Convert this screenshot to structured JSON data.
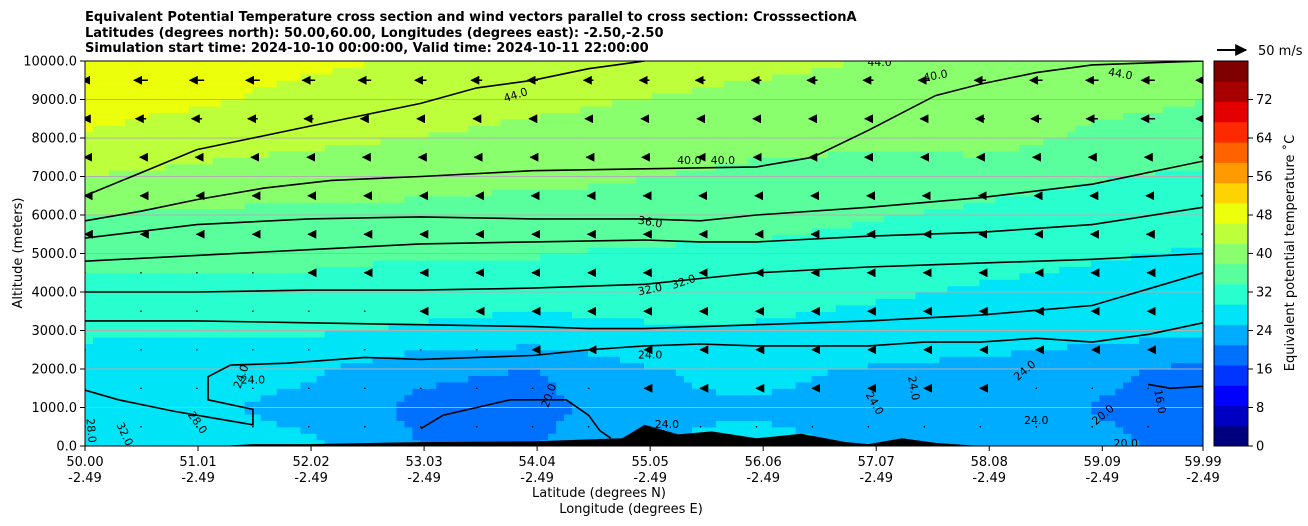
{
  "chart_data": {
    "type": "heatmap",
    "title_lines": [
      "Equivalent Potential Temperature cross section and wind vectors parallel to cross section: CrosssectionA",
      "Latitudes (degrees north): 50.00,60.00, Longitudes (degrees east): -2.50,-2.50",
      "Simulation start time: 2024-10-10 00:00:00, Valid time: 2024-10-11 22:00:00"
    ],
    "xlabel_lines": [
      "Latitude (degrees N)",
      "Longitude (degrees E)"
    ],
    "ylabel": "Altitude (meters)",
    "colorbar_label": "Equivalent potential temperature $^\\circ$C",
    "colorbar_label_display": "Equivalent potential temperature ˚C",
    "quiver_key_label": "50 m/s",
    "xlim": [
      50.0,
      59.99
    ],
    "ylim": [
      0,
      10000
    ],
    "x_ticks": [
      {
        "lat": "50.00",
        "lon": "-2.49",
        "value": 50.0
      },
      {
        "lat": "51.01",
        "lon": "-2.49",
        "value": 51.01
      },
      {
        "lat": "52.02",
        "lon": "-2.49",
        "value": 52.02
      },
      {
        "lat": "53.03",
        "lon": "-2.49",
        "value": 53.03
      },
      {
        "lat": "54.04",
        "lon": "-2.49",
        "value": 54.04
      },
      {
        "lat": "55.05",
        "lon": "-2.49",
        "value": 55.05
      },
      {
        "lat": "56.06",
        "lon": "-2.49",
        "value": 56.06
      },
      {
        "lat": "57.07",
        "lon": "-2.49",
        "value": 57.07
      },
      {
        "lat": "58.08",
        "lon": "-2.49",
        "value": 58.08
      },
      {
        "lat": "59.09",
        "lon": "-2.49",
        "value": 59.09
      },
      {
        "lat": "59.99",
        "lon": "-2.49",
        "value": 59.99
      }
    ],
    "y_ticks": [
      {
        "label": "0.0",
        "value": 0
      },
      {
        "label": "1000.0",
        "value": 1000
      },
      {
        "label": "2000.0",
        "value": 2000
      },
      {
        "label": "3000.0",
        "value": 3000
      },
      {
        "label": "4000.0",
        "value": 4000
      },
      {
        "label": "5000.0",
        "value": 5000
      },
      {
        "label": "6000.0",
        "value": 6000
      },
      {
        "label": "7000.0",
        "value": 7000
      },
      {
        "label": "8000.0",
        "value": 8000
      },
      {
        "label": "9000.0",
        "value": 9000
      },
      {
        "label": "10000.0",
        "value": 10000
      }
    ],
    "colorbar_ticks": [
      "0",
      "8",
      "16",
      "24",
      "32",
      "40",
      "48",
      "56",
      "64",
      "72"
    ],
    "colorbar_range": [
      0,
      80
    ],
    "colorbar_colors": [
      "#00007f",
      "#0000c4",
      "#0000ff",
      "#0034ff",
      "#0070ff",
      "#00acff",
      "#00e4f8",
      "#29ffce",
      "#5aff9d",
      "#8aff6d",
      "#bdff3a",
      "#ecff0b",
      "#ffd300",
      "#ff9a00",
      "#ff6300",
      "#ff2900",
      "#e40000",
      "#a80000",
      "#7f0000"
    ],
    "heatmap_grid": {
      "lat": [
        50.0,
        51.0,
        52.0,
        53.0,
        54.0,
        55.0,
        56.0,
        57.0,
        58.0,
        59.0,
        59.99
      ],
      "alt": [
        0,
        1000,
        2000,
        3000,
        4000,
        5000,
        6000,
        7000,
        8000,
        9000,
        10000
      ],
      "theta_e_c": [
        [
          28,
          27,
          26,
          21,
          21,
          25,
          26,
          25,
          25,
          22,
          20
        ],
        [
          28,
          26,
          24,
          20,
          19,
          25,
          25,
          24,
          24,
          21,
          19
        ],
        [
          28,
          27,
          26,
          22,
          21,
          25,
          26,
          25,
          24,
          22,
          20
        ],
        [
          30,
          30,
          30,
          29,
          28,
          29,
          29,
          28,
          28,
          27,
          26
        ],
        [
          32,
          32,
          32,
          31,
          31,
          31,
          31,
          30,
          29,
          28,
          27
        ],
        [
          35,
          35,
          35,
          34,
          34,
          33,
          33,
          32,
          31,
          30,
          29
        ],
        [
          38,
          37,
          37,
          37,
          36,
          36,
          35,
          34,
          33,
          32,
          31
        ],
        [
          42,
          41,
          40,
          39,
          39,
          38,
          37,
          36,
          35,
          34,
          33
        ],
        [
          46,
          44,
          43,
          42,
          41,
          40,
          39,
          39,
          40,
          37,
          36
        ],
        [
          48,
          47,
          45,
          44,
          43,
          42,
          41,
          41,
          41,
          39,
          38
        ],
        [
          49,
          48,
          47,
          46,
          45,
          44,
          43,
          42,
          41,
          40,
          40
        ]
      ]
    },
    "contour_levels": [
      "16.0",
      "20.0",
      "24.0",
      "28.0",
      "32.0",
      "36.0",
      "40.0",
      "44.0"
    ],
    "contours": [
      {
        "label": "44.0",
        "points": [
          [
            50.0,
            6500
          ],
          [
            50.5,
            7100
          ],
          [
            51.0,
            7700
          ],
          [
            51.5,
            8000
          ],
          [
            52.0,
            8300
          ],
          [
            52.5,
            8600
          ],
          [
            53.0,
            8900
          ],
          [
            53.5,
            9300
          ],
          [
            54.0,
            9500
          ],
          [
            54.5,
            9800
          ],
          [
            55.0,
            10000
          ]
        ]
      },
      {
        "label": "40.0",
        "points": [
          [
            50.0,
            5850
          ],
          [
            50.5,
            6100
          ],
          [
            51.0,
            6400
          ],
          [
            51.6,
            6700
          ],
          [
            52.2,
            6900
          ],
          [
            53.0,
            7000
          ],
          [
            54.0,
            7150
          ],
          [
            55.0,
            7200
          ],
          [
            56.0,
            7250
          ],
          [
            56.5,
            7500
          ],
          [
            57.0,
            8200
          ],
          [
            57.6,
            9100
          ],
          [
            58.0,
            9400
          ],
          [
            58.5,
            9700
          ],
          [
            59.0,
            9900
          ],
          [
            59.99,
            10000
          ]
        ]
      },
      {
        "label": "36.0",
        "points": [
          [
            50.0,
            5400
          ],
          [
            51.0,
            5750
          ],
          [
            52.0,
            5900
          ],
          [
            53.0,
            5950
          ],
          [
            54.0,
            5900
          ],
          [
            55.0,
            5900
          ],
          [
            55.5,
            5850
          ],
          [
            56.0,
            6000
          ],
          [
            57.0,
            6200
          ],
          [
            58.0,
            6450
          ],
          [
            59.0,
            6800
          ],
          [
            59.99,
            7400
          ]
        ]
      },
      {
        "label": "32.0",
        "points": [
          [
            50.0,
            4800
          ],
          [
            51.0,
            4950
          ],
          [
            52.0,
            5100
          ],
          [
            53.0,
            5250
          ],
          [
            54.0,
            5300
          ],
          [
            55.0,
            5350
          ],
          [
            55.5,
            5300
          ],
          [
            56.0,
            5300
          ],
          [
            57.0,
            5450
          ],
          [
            58.0,
            5550
          ],
          [
            59.0,
            5750
          ],
          [
            59.99,
            6200
          ]
        ]
      },
      {
        "label": "32.0",
        "points": [
          [
            50.0,
            4000
          ],
          [
            51.0,
            4000
          ],
          [
            52.0,
            4050
          ],
          [
            53.0,
            4050
          ],
          [
            54.0,
            4100
          ],
          [
            55.0,
            4200
          ],
          [
            55.5,
            4350
          ],
          [
            56.0,
            4500
          ],
          [
            57.0,
            4650
          ],
          [
            58.0,
            4750
          ],
          [
            59.0,
            4850
          ],
          [
            59.99,
            5000
          ]
        ]
      },
      {
        "label": "28.0",
        "points": [
          [
            50.0,
            3250
          ],
          [
            51.0,
            3250
          ],
          [
            52.0,
            3200
          ],
          [
            53.0,
            3150
          ],
          [
            54.0,
            3100
          ],
          [
            54.5,
            3050
          ],
          [
            55.0,
            3050
          ],
          [
            56.0,
            3150
          ],
          [
            57.0,
            3250
          ],
          [
            58.0,
            3400
          ],
          [
            59.0,
            3650
          ],
          [
            59.99,
            4500
          ]
        ]
      },
      {
        "label": "24.0",
        "points": [
          [
            50.0,
            1450
          ],
          [
            50.3,
            1200
          ],
          [
            50.8,
            900
          ],
          [
            51.2,
            700
          ],
          [
            51.5,
            550
          ],
          [
            51.5,
            950
          ],
          [
            51.1,
            1200
          ],
          [
            51.1,
            1800
          ],
          [
            51.3,
            2100
          ],
          [
            51.8,
            2150
          ],
          [
            52.5,
            2300
          ],
          [
            53.0,
            2250
          ],
          [
            53.5,
            2300
          ],
          [
            54.0,
            2350
          ],
          [
            54.5,
            2500
          ],
          [
            55.0,
            2600
          ],
          [
            55.5,
            2650
          ],
          [
            56.0,
            2600
          ],
          [
            56.5,
            2600
          ],
          [
            57.0,
            2600
          ],
          [
            57.5,
            2700
          ],
          [
            58.0,
            2700
          ],
          [
            58.5,
            2800
          ],
          [
            59.0,
            2700
          ],
          [
            59.5,
            2900
          ],
          [
            59.99,
            3200
          ]
        ]
      },
      {
        "label": "20.0",
        "points": [
          [
            53.0,
            450
          ],
          [
            53.2,
            800
          ],
          [
            53.8,
            1200
          ],
          [
            54.3,
            1200
          ],
          [
            54.5,
            800
          ],
          [
            54.6,
            400
          ],
          [
            54.7,
            200
          ]
        ]
      },
      {
        "label": "16.0",
        "points": [
          [
            59.5,
            1600
          ],
          [
            59.7,
            1500
          ],
          [
            59.99,
            1550
          ]
        ]
      }
    ],
    "contour_labels": [
      {
        "text": "44.0",
        "lat": 53.85,
        "alt": 9100,
        "rot": -18
      },
      {
        "text": "44.0",
        "lat": 59.25,
        "alt": 9650,
        "rot": 10
      },
      {
        "text": "44.0",
        "lat": 57.1,
        "alt": 9950,
        "rot": 0
      },
      {
        "text": "40.0",
        "lat": 57.6,
        "alt": 9600,
        "rot": -10
      },
      {
        "text": "40.0",
        "lat": 55.4,
        "alt": 7400,
        "rot": 0
      },
      {
        "text": "40.0",
        "lat": 55.7,
        "alt": 7400,
        "rot": 0
      },
      {
        "text": "36.0",
        "lat": 55.05,
        "alt": 5800,
        "rot": 10
      },
      {
        "text": "32.0",
        "lat": 55.05,
        "alt": 4050,
        "rot": -12
      },
      {
        "text": "32.0",
        "lat": 55.35,
        "alt": 4250,
        "rot": -18
      },
      {
        "text": "24.0",
        "lat": 55.05,
        "alt": 2350,
        "rot": 0
      },
      {
        "text": "24.0",
        "lat": 51.5,
        "alt": 1700,
        "rot": 0
      },
      {
        "text": "24.0",
        "lat": 51.4,
        "alt": 1800,
        "rot": -70
      },
      {
        "text": "24.0",
        "lat": 55.2,
        "alt": 550,
        "rot": 0
      },
      {
        "text": "24.0",
        "lat": 57.05,
        "alt": 1100,
        "rot": 60
      },
      {
        "text": "24.0",
        "lat": 57.4,
        "alt": 1500,
        "rot": 80
      },
      {
        "text": "24.0",
        "lat": 58.4,
        "alt": 1950,
        "rot": -40
      },
      {
        "text": "24.0",
        "lat": 58.5,
        "alt": 650,
        "rot": 0
      },
      {
        "text": "20.0",
        "lat": 54.15,
        "alt": 1300,
        "rot": -70
      },
      {
        "text": "20.0",
        "lat": 59.1,
        "alt": 800,
        "rot": -40
      },
      {
        "text": "20.0",
        "lat": 59.3,
        "alt": 50,
        "rot": 0
      },
      {
        "text": "16.0",
        "lat": 59.6,
        "alt": 1150,
        "rot": 80
      },
      {
        "text": "28.0",
        "lat": 51.0,
        "alt": 600,
        "rot": 55
      },
      {
        "text": "28.0",
        "lat": 50.05,
        "alt": 400,
        "rot": 85
      },
      {
        "text": "32.0",
        "lat": 50.35,
        "alt": 300,
        "rot": 65
      }
    ],
    "terrain": [
      [
        50.0,
        0
      ],
      [
        51.2,
        0
      ],
      [
        51.5,
        50
      ],
      [
        52.0,
        50
      ],
      [
        53.0,
        100
      ],
      [
        54.0,
        120
      ],
      [
        54.8,
        200
      ],
      [
        55.0,
        550
      ],
      [
        55.3,
        300
      ],
      [
        55.6,
        380
      ],
      [
        56.0,
        200
      ],
      [
        56.4,
        320
      ],
      [
        56.8,
        100
      ],
      [
        57.0,
        50
      ],
      [
        57.3,
        200
      ],
      [
        57.6,
        80
      ],
      [
        58.0,
        0
      ],
      [
        59.99,
        0
      ]
    ],
    "wind_field": {
      "lat_positions": [
        50.0,
        50.5,
        51.0,
        51.5,
        52.0,
        52.5,
        53.0,
        53.5,
        54.0,
        54.5,
        55.0,
        55.5,
        56.0,
        56.5,
        57.0,
        57.5,
        58.0,
        58.5,
        59.0,
        59.5,
        59.99
      ],
      "alt_positions": [
        9500,
        8500,
        7500,
        6500,
        5500,
        4500,
        3500,
        2500,
        1500,
        500
      ],
      "u_ms": [
        [
          -10,
          -24,
          -25,
          -24,
          -22,
          -22,
          -20,
          -19,
          -18,
          -17,
          -17,
          -17,
          -17,
          -18,
          -18,
          -20,
          -20,
          -22,
          -22,
          -23,
          -24
        ],
        [
          -8,
          -18,
          -18,
          -17,
          -16,
          -14,
          -13,
          -12,
          -12,
          -12,
          -12,
          -12,
          -12,
          -12,
          -12,
          -14,
          -16,
          -18,
          -20,
          -24,
          -24
        ],
        [
          -3,
          -4,
          -5,
          -6,
          -6,
          -7,
          -7,
          -8,
          -8,
          -8,
          -9,
          -10,
          -10,
          -11,
          -12,
          -12,
          -12,
          -12,
          -12,
          -12,
          -12
        ],
        [
          -2,
          -2,
          -2,
          -2,
          -3,
          -3,
          -3,
          -3,
          -4,
          -4,
          -4,
          -5,
          -5,
          -5,
          -5,
          -6,
          -6,
          -6,
          -7,
          -7,
          -7
        ],
        [
          -1,
          -1,
          -1,
          -1,
          -2,
          -2,
          -2,
          -2,
          -2,
          -3,
          -3,
          -3,
          -4,
          -4,
          -4,
          -4,
          -4,
          -4,
          -5,
          -5,
          -5
        ],
        [
          0,
          0,
          0,
          0,
          -1,
          -1,
          -1,
          -2,
          -2,
          -2,
          -3,
          -3,
          -3,
          -3,
          -3,
          -3,
          -3,
          -3,
          -3,
          -3,
          -3
        ],
        [
          0,
          0,
          0,
          0,
          0,
          0,
          -1,
          -1,
          -1,
          -2,
          -2,
          -2,
          -2,
          -2,
          -2,
          -2,
          -2,
          -2,
          -2,
          -2,
          -2
        ],
        [
          0,
          0,
          0,
          0,
          0,
          0,
          0,
          0,
          -1,
          -1,
          -1,
          -1,
          -1,
          -1,
          -1,
          -1,
          -1,
          -1,
          -1,
          -1,
          -1
        ],
        [
          0,
          0,
          0,
          0,
          0,
          0,
          0,
          0,
          0,
          0,
          -1,
          -1,
          -1,
          -1,
          -1,
          -1,
          -1,
          0,
          0,
          0,
          0
        ],
        [
          0,
          0,
          0,
          0,
          0,
          0,
          0,
          0,
          0,
          0,
          0,
          0,
          0,
          0,
          0,
          0,
          0,
          0,
          0,
          0,
          0
        ]
      ],
      "key_speed_ms": 50
    }
  }
}
